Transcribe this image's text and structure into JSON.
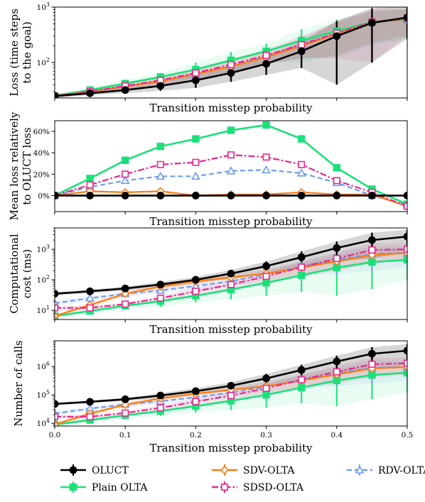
{
  "colors": {
    "OLUCT": "#000000",
    "Plain OLTA": "#1be07a",
    "SDV-OLTA": "#ff7a10",
    "SDSD-OLTA": "#e8278c",
    "RDV-OLTA": "#6e9cf0"
  },
  "legend": {
    "items": [
      {
        "label": "OLUCT",
        "marker": "circle",
        "dash": "solid"
      },
      {
        "label": "Plain OLTA",
        "marker": "square",
        "dash": "solid"
      },
      {
        "label": "SDV-OLTA",
        "marker": "diamond-open",
        "dash": "solid"
      },
      {
        "label": "SDSD-OLTA",
        "marker": "square-open",
        "dash": "dashdot"
      },
      {
        "label": "RDV-OLTA",
        "marker": "triangle-open",
        "dash": "dashed"
      }
    ]
  },
  "chart_data": [
    {
      "type": "line",
      "ylabel": [
        "Loss (time steps",
        "to the goal)"
      ],
      "xlabel": "Transition misstep probability",
      "xlim": [
        0,
        0.5
      ],
      "yscale": "log",
      "ylim": [
        23,
        1000
      ],
      "yticks": [
        {
          "v": 100,
          "base": "10",
          "exp": "2"
        },
        {
          "v": 1000,
          "base": "10",
          "exp": "3"
        }
      ],
      "show_xticks": false,
      "shaded": true,
      "x": [
        0,
        0.05,
        0.1,
        0.15,
        0.2,
        0.25,
        0.3,
        0.35,
        0.4,
        0.45,
        0.5
      ],
      "series": [
        {
          "name": "OLUCT",
          "values": [
            25,
            28,
            32,
            38,
            48,
            65,
            95,
            160,
            300,
            520,
            650
          ],
          "err": [
            2,
            2,
            4,
            7,
            13,
            20,
            35,
            80,
            260,
            420,
            380
          ]
        },
        {
          "name": "Plain OLTA",
          "values": [
            25,
            32,
            42,
            55,
            75,
            110,
            160,
            250,
            370,
            540,
            590
          ],
          "err": [
            2,
            4,
            6,
            10,
            25,
            45,
            60,
            150,
            230,
            320,
            330
          ]
        },
        {
          "name": "SDV-OLTA",
          "values": [
            25,
            30,
            37,
            46,
            62,
            85,
            125,
            200,
            330,
            530,
            610
          ],
          "err": [
            2,
            3,
            4,
            6,
            12,
            20,
            30,
            80,
            200,
            300,
            300
          ]
        },
        {
          "name": "SDSD-OLTA",
          "values": [
            25,
            30,
            38,
            48,
            65,
            92,
            135,
            210,
            340,
            540,
            620
          ],
          "err": [
            2,
            3,
            5,
            8,
            14,
            25,
            40,
            90,
            220,
            440,
            300
          ]
        },
        {
          "name": "RDV-OLTA",
          "values": [
            25,
            30,
            37,
            46,
            61,
            87,
            130,
            205,
            335,
            530,
            600
          ],
          "err": [
            2,
            3,
            4,
            6,
            12,
            22,
            35,
            85,
            210,
            320,
            300
          ]
        }
      ]
    },
    {
      "type": "line",
      "ylabel": [
        "Mean loss relatively",
        "to OLUCT loss"
      ],
      "xlabel": "Transition misstep probability",
      "xlim": [
        0,
        0.5
      ],
      "yscale": "linear",
      "ylim": [
        -15,
        70
      ],
      "yticks": [
        {
          "v": 0,
          "label": "0%"
        },
        {
          "v": 20,
          "label": "20%"
        },
        {
          "v": 40,
          "label": "40%"
        },
        {
          "v": 60,
          "label": "60%"
        }
      ],
      "show_xticks": false,
      "shaded": false,
      "x": [
        0,
        0.05,
        0.1,
        0.15,
        0.2,
        0.25,
        0.3,
        0.35,
        0.4,
        0.45,
        0.5
      ],
      "series": [
        {
          "name": "OLUCT",
          "values": [
            0,
            0,
            0,
            0,
            0,
            0,
            0,
            0,
            0,
            0,
            0
          ]
        },
        {
          "name": "Plain OLTA",
          "values": [
            0,
            16,
            33,
            46,
            53,
            61,
            66,
            53,
            26,
            6,
            -8
          ]
        },
        {
          "name": "SDV-OLTA",
          "values": [
            0,
            4,
            3,
            4,
            0,
            1,
            1,
            3,
            1,
            1,
            -10
          ]
        },
        {
          "name": "SDSD-OLTA",
          "values": [
            0,
            10,
            20,
            29,
            31,
            38,
            36,
            29,
            14,
            3,
            -10
          ]
        },
        {
          "name": "RDV-OLTA",
          "values": [
            0,
            8,
            14,
            18,
            18,
            23,
            24,
            21,
            12,
            0,
            -9
          ]
        }
      ]
    },
    {
      "type": "line",
      "ylabel": [
        "Computational",
        "cost (ms)"
      ],
      "xlabel": "Transition misstep probability",
      "xlim": [
        0,
        0.5
      ],
      "yscale": "log",
      "ylim": [
        5,
        5000
      ],
      "yticks": [
        {
          "v": 10,
          "base": "10",
          "exp": "1"
        },
        {
          "v": 100,
          "base": "10",
          "exp": "2"
        },
        {
          "v": 1000,
          "base": "10",
          "exp": "3"
        }
      ],
      "show_xticks": false,
      "shaded": true,
      "x": [
        0,
        0.05,
        0.1,
        0.15,
        0.2,
        0.25,
        0.3,
        0.35,
        0.4,
        0.45,
        0.5
      ],
      "series": [
        {
          "name": "OLUCT",
          "values": [
            35,
            42,
            52,
            70,
            100,
            160,
            280,
            550,
            1100,
            2000,
            2600
          ],
          "err": [
            4,
            6,
            8,
            15,
            25,
            50,
            120,
            300,
            700,
            1500,
            1800
          ]
        },
        {
          "name": "Plain OLTA",
          "values": [
            6.5,
            9.5,
            14,
            20,
            30,
            48,
            80,
            140,
            250,
            380,
            450
          ],
          "err": [
            1,
            2,
            3,
            7,
            12,
            25,
            50,
            100,
            220,
            330,
            350
          ]
        },
        {
          "name": "SDV-OLTA",
          "values": [
            6.5,
            15,
            35,
            60,
            90,
            120,
            160,
            250,
            400,
            650,
            750
          ],
          "err": [
            1,
            3,
            8,
            15,
            25,
            40,
            60,
            100,
            200,
            300,
            300
          ]
        },
        {
          "name": "SDSD-OLTA",
          "values": [
            12,
            12,
            16,
            25,
            42,
            70,
            130,
            260,
            500,
            950,
            1000
          ],
          "err": [
            2,
            2,
            3,
            6,
            12,
            25,
            55,
            130,
            300,
            600,
            600
          ]
        },
        {
          "name": "RDV-OLTA",
          "values": [
            17,
            25,
            35,
            45,
            62,
            90,
            150,
            280,
            450,
            700,
            750
          ],
          "err": [
            3,
            5,
            7,
            10,
            17,
            30,
            60,
            130,
            300,
            500,
            500
          ]
        }
      ]
    },
    {
      "type": "line",
      "ylabel": [
        "Number of calls"
      ],
      "xlabel": "Transition misstep probability",
      "xlim": [
        0,
        0.5
      ],
      "yscale": "log",
      "ylim": [
        8000,
        8000000
      ],
      "yticks": [
        {
          "v": 10000,
          "base": "10",
          "exp": "4"
        },
        {
          "v": 100000,
          "base": "10",
          "exp": "5"
        },
        {
          "v": 1000000,
          "base": "10",
          "exp": "6"
        }
      ],
      "show_xticks": true,
      "xticks": [
        0,
        0.1,
        0.2,
        0.3,
        0.4,
        0.5
      ],
      "xticklabels": [
        "0.0",
        "0.1",
        "0.2",
        "0.3",
        "0.4",
        "0.5"
      ],
      "shaded": true,
      "x": [
        0,
        0.05,
        0.1,
        0.15,
        0.2,
        0.25,
        0.3,
        0.35,
        0.4,
        0.45,
        0.5
      ],
      "series": [
        {
          "name": "OLUCT",
          "values": [
            48000,
            57000,
            70000,
            95000,
            135000,
            210000,
            380000,
            750000,
            1500000,
            2800000,
            3600000
          ],
          "err": [
            5000,
            6000,
            9000,
            20000,
            35000,
            70000,
            170000,
            400000,
            900000,
            2000000,
            2500000
          ]
        },
        {
          "name": "Plain OLTA",
          "values": [
            9000,
            13000,
            19000,
            27000,
            40000,
            62000,
            100000,
            180000,
            320000,
            500000,
            600000
          ],
          "err": [
            1500,
            2500,
            4000,
            9000,
            16000,
            33000,
            65000,
            130000,
            280000,
            430000,
            480000
          ]
        },
        {
          "name": "SDV-OLTA",
          "values": [
            9000,
            22000,
            45000,
            75000,
            110000,
            150000,
            200000,
            320000,
            520000,
            850000,
            950000
          ],
          "err": [
            1500,
            4000,
            10000,
            18000,
            30000,
            50000,
            80000,
            130000,
            250000,
            400000,
            400000
          ]
        },
        {
          "name": "SDSD-OLTA",
          "values": [
            17000,
            17000,
            23000,
            35000,
            58000,
            95000,
            170000,
            340000,
            650000,
            1200000,
            1300000
          ],
          "err": [
            2500,
            3000,
            5000,
            9000,
            17000,
            33000,
            70000,
            170000,
            400000,
            800000,
            800000
          ]
        },
        {
          "name": "RDV-OLTA",
          "values": [
            22000,
            33000,
            46000,
            60000,
            82000,
            120000,
            190000,
            350000,
            580000,
            900000,
            950000
          ],
          "err": [
            4000,
            6000,
            9000,
            14000,
            22000,
            40000,
            80000,
            170000,
            380000,
            650000,
            650000
          ]
        }
      ]
    }
  ]
}
